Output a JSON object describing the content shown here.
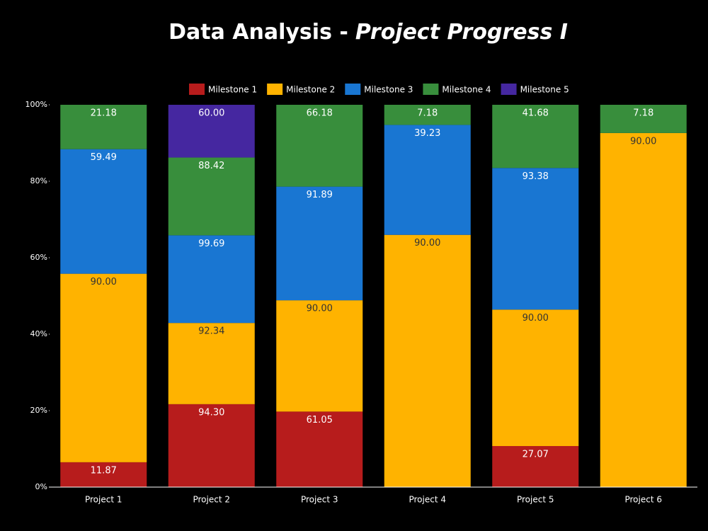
{
  "chart_data": {
    "type": "bar",
    "stack": "percent",
    "title_parts": [
      "Data Analysis -",
      "Project Progress I"
    ],
    "categories": [
      "Project 1",
      "Project 2",
      "Project 3",
      "Project 4",
      "Project 5",
      "Project 6"
    ],
    "series": [
      {
        "name": "Milestone 1",
        "color": "#b71c1c",
        "values": [
          11.87,
          94.3,
          61.05,
          null,
          27.07,
          null
        ],
        "value_labels": [
          "11.87",
          "94.30",
          "61.05",
          null,
          "27.07",
          null
        ]
      },
      {
        "name": "Milestone 2",
        "color": "#ffb300",
        "values": [
          90.0,
          92.34,
          90.0,
          90.0,
          90.0,
          90.0
        ],
        "value_labels": [
          "90.00",
          "92.34",
          "90.00",
          "90.00",
          "90.00",
          "90.00"
        ]
      },
      {
        "name": "Milestone 3",
        "color": "#1976d2",
        "values": [
          59.49,
          99.69,
          91.89,
          39.23,
          93.38,
          null
        ],
        "value_labels": [
          "59.49",
          "99.69",
          "91.89",
          "39.23",
          "93.38",
          null
        ]
      },
      {
        "name": "Milestone 4",
        "color": "#388e3c",
        "values": [
          21.18,
          88.42,
          66.18,
          7.18,
          41.68,
          7.18
        ],
        "value_labels": [
          "21.18",
          "88.42",
          "66.18",
          "7.18",
          "41.68",
          "7.18"
        ]
      },
      {
        "name": "Milestone 5",
        "color": "#4527a0",
        "values": [
          null,
          60.0,
          null,
          null,
          null,
          null
        ],
        "value_labels": [
          null,
          "60.00",
          null,
          null,
          null,
          null
        ]
      }
    ],
    "ylim": [
      0,
      100
    ],
    "yticks": [
      {
        "value": 0,
        "label": "0%"
      },
      {
        "value": 20,
        "label": "20%"
      },
      {
        "value": 40,
        "label": "40%"
      },
      {
        "value": 60,
        "label": "60%"
      },
      {
        "value": 80,
        "label": "80%"
      },
      {
        "value": 100,
        "label": "100%"
      }
    ],
    "legend": "top"
  }
}
